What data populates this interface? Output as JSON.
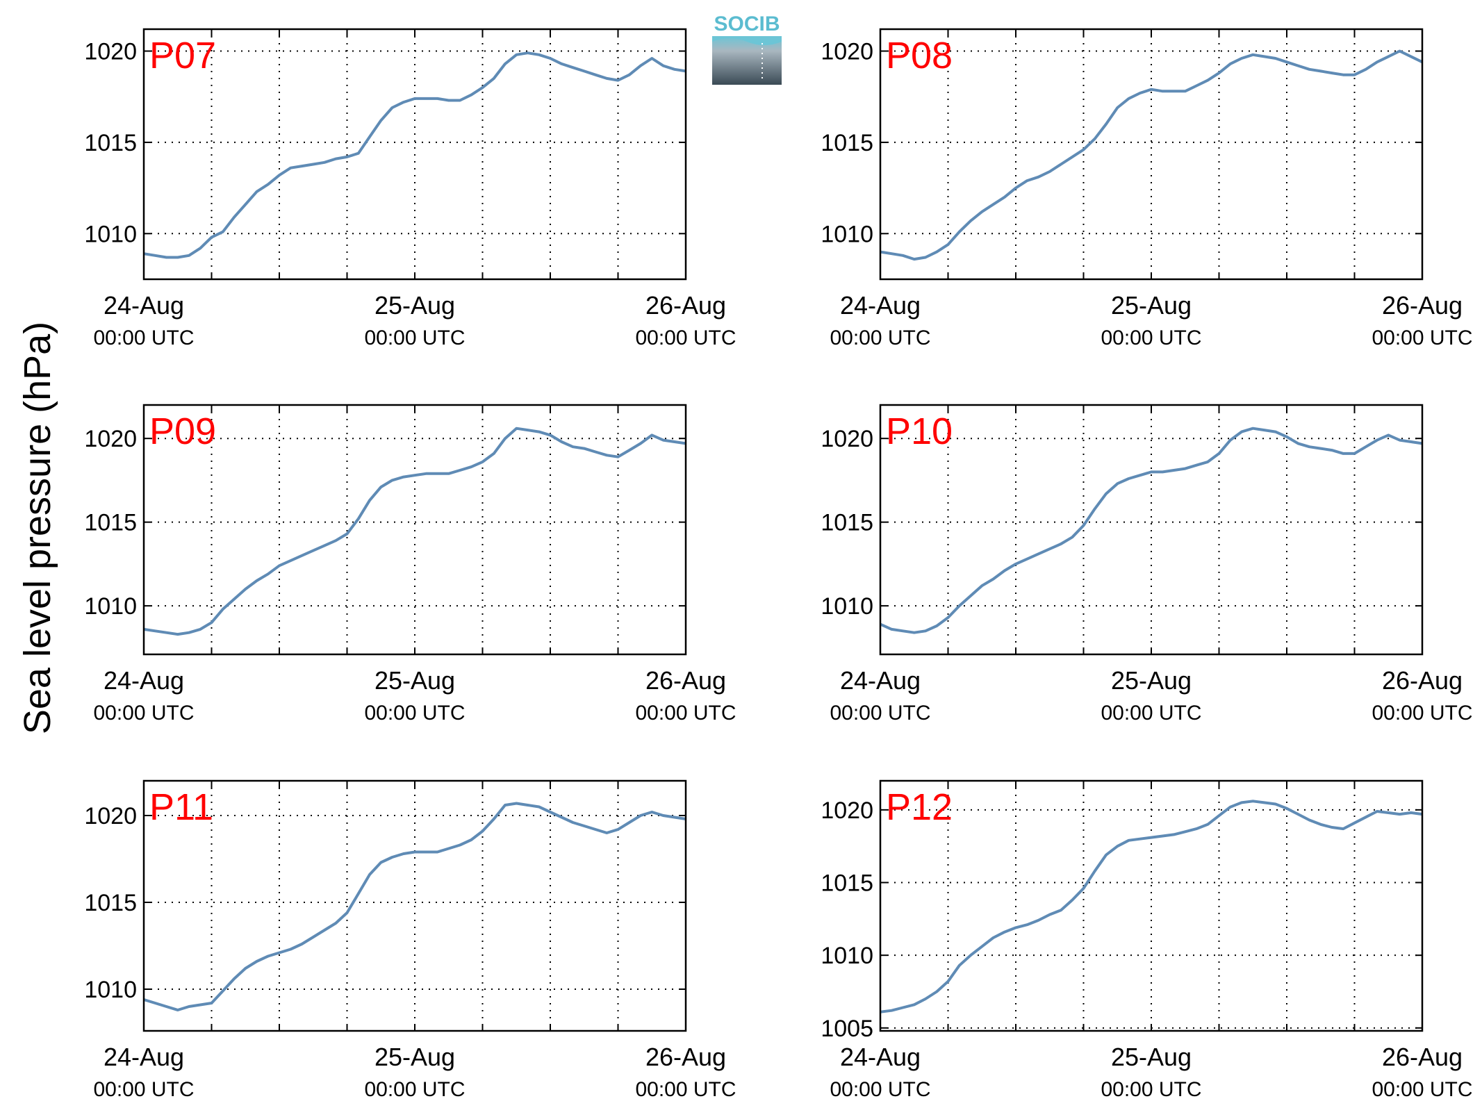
{
  "figure": {
    "ylabel": "Sea level pressure (hPa)",
    "logo_text": "SOCIB"
  },
  "colors": {
    "line": "#5f8bb5",
    "panel_label": "#ff0000",
    "axis": "#000000",
    "grid": "#000000",
    "logo_top": "#6cc5d6",
    "logo_bottom": "#3a4a55"
  },
  "chart_data": [
    {
      "type": "line",
      "name": "P07",
      "xlim": [
        0,
        48
      ],
      "ylim": [
        1007.5,
        1021.2
      ],
      "yticks": [
        1010,
        1015,
        1020
      ],
      "xticks": [
        0,
        6,
        12,
        18,
        24,
        30,
        36,
        42,
        48
      ],
      "xtick_labels": [
        {
          "x": 0,
          "date": "24-Aug",
          "time": "00:00 UTC"
        },
        {
          "x": 24,
          "date": "25-Aug",
          "time": "00:00 UTC"
        },
        {
          "x": 48,
          "date": "26-Aug",
          "time": "00:00 UTC"
        }
      ],
      "grid": true,
      "x": [
        0,
        1,
        2,
        3,
        4,
        5,
        6,
        7,
        8,
        9,
        10,
        11,
        12,
        13,
        14,
        15,
        16,
        17,
        18,
        19,
        20,
        21,
        22,
        23,
        24,
        25,
        26,
        27,
        28,
        29,
        30,
        31,
        32,
        33,
        34,
        35,
        36,
        37,
        38,
        39,
        40,
        41,
        42,
        43,
        44,
        45,
        46,
        47,
        48
      ],
      "y": [
        1008.9,
        1008.8,
        1008.7,
        1008.7,
        1008.8,
        1009.2,
        1009.8,
        1010.1,
        1010.9,
        1011.6,
        1012.3,
        1012.7,
        1013.2,
        1013.6,
        1013.7,
        1013.8,
        1013.9,
        1014.1,
        1014.2,
        1014.4,
        1015.3,
        1016.2,
        1016.9,
        1017.2,
        1017.4,
        1017.4,
        1017.4,
        1017.3,
        1017.3,
        1017.6,
        1018.0,
        1018.5,
        1019.3,
        1019.8,
        1019.9,
        1019.8,
        1019.6,
        1019.3,
        1019.1,
        1018.9,
        1018.7,
        1018.5,
        1018.4,
        1018.7,
        1019.2,
        1019.6,
        1019.2,
        1019.0,
        1018.9
      ]
    },
    {
      "type": "line",
      "name": "P08",
      "xlim": [
        0,
        48
      ],
      "ylim": [
        1007.5,
        1021.2
      ],
      "yticks": [
        1010,
        1015,
        1020
      ],
      "xticks": [
        0,
        6,
        12,
        18,
        24,
        30,
        36,
        42,
        48
      ],
      "xtick_labels": [
        {
          "x": 0,
          "date": "24-Aug",
          "time": "00:00 UTC"
        },
        {
          "x": 24,
          "date": "25-Aug",
          "time": "00:00 UTC"
        },
        {
          "x": 48,
          "date": "26-Aug",
          "time": "00:00 UTC"
        }
      ],
      "grid": true,
      "x": [
        0,
        1,
        2,
        3,
        4,
        5,
        6,
        7,
        8,
        9,
        10,
        11,
        12,
        13,
        14,
        15,
        16,
        17,
        18,
        19,
        20,
        21,
        22,
        23,
        24,
        25,
        26,
        27,
        28,
        29,
        30,
        31,
        32,
        33,
        34,
        35,
        36,
        37,
        38,
        39,
        40,
        41,
        42,
        43,
        44,
        45,
        46,
        47,
        48
      ],
      "y": [
        1009.0,
        1008.9,
        1008.8,
        1008.6,
        1008.7,
        1009.0,
        1009.4,
        1010.1,
        1010.7,
        1011.2,
        1011.6,
        1012.0,
        1012.5,
        1012.9,
        1013.1,
        1013.4,
        1013.8,
        1014.2,
        1014.6,
        1015.2,
        1016.0,
        1016.9,
        1017.4,
        1017.7,
        1017.9,
        1017.8,
        1017.8,
        1017.8,
        1018.1,
        1018.4,
        1018.8,
        1019.3,
        1019.6,
        1019.8,
        1019.7,
        1019.6,
        1019.4,
        1019.2,
        1019.0,
        1018.9,
        1018.8,
        1018.7,
        1018.7,
        1019.0,
        1019.4,
        1019.7,
        1020.0,
        1019.7,
        1019.4
      ]
    },
    {
      "type": "line",
      "name": "P09",
      "xlim": [
        0,
        48
      ],
      "ylim": [
        1007.1,
        1022.0
      ],
      "yticks": [
        1010,
        1015,
        1020
      ],
      "xticks": [
        0,
        6,
        12,
        18,
        24,
        30,
        36,
        42,
        48
      ],
      "xtick_labels": [
        {
          "x": 0,
          "date": "24-Aug",
          "time": "00:00 UTC"
        },
        {
          "x": 24,
          "date": "25-Aug",
          "time": "00:00 UTC"
        },
        {
          "x": 48,
          "date": "26-Aug",
          "time": "00:00 UTC"
        }
      ],
      "grid": true,
      "x": [
        0,
        1,
        2,
        3,
        4,
        5,
        6,
        7,
        8,
        9,
        10,
        11,
        12,
        13,
        14,
        15,
        16,
        17,
        18,
        19,
        20,
        21,
        22,
        23,
        24,
        25,
        26,
        27,
        28,
        29,
        30,
        31,
        32,
        33,
        34,
        35,
        36,
        37,
        38,
        39,
        40,
        41,
        42,
        43,
        44,
        45,
        46,
        47,
        48
      ],
      "y": [
        1008.6,
        1008.5,
        1008.4,
        1008.3,
        1008.4,
        1008.6,
        1009.0,
        1009.8,
        1010.4,
        1011.0,
        1011.5,
        1011.9,
        1012.4,
        1012.7,
        1013.0,
        1013.3,
        1013.6,
        1013.9,
        1014.3,
        1015.2,
        1016.3,
        1017.1,
        1017.5,
        1017.7,
        1017.8,
        1017.9,
        1017.9,
        1017.9,
        1018.1,
        1018.3,
        1018.6,
        1019.1,
        1020.0,
        1020.6,
        1020.5,
        1020.4,
        1020.2,
        1019.8,
        1019.5,
        1019.4,
        1019.2,
        1019.0,
        1018.9,
        1019.3,
        1019.7,
        1020.2,
        1019.9,
        1019.8,
        1019.7
      ]
    },
    {
      "type": "line",
      "name": "P10",
      "xlim": [
        0,
        48
      ],
      "ylim": [
        1007.1,
        1022.0
      ],
      "yticks": [
        1010,
        1015,
        1020
      ],
      "xticks": [
        0,
        6,
        12,
        18,
        24,
        30,
        36,
        42,
        48
      ],
      "xtick_labels": [
        {
          "x": 0,
          "date": "24-Aug",
          "time": "00:00 UTC"
        },
        {
          "x": 24,
          "date": "25-Aug",
          "time": "00:00 UTC"
        },
        {
          "x": 48,
          "date": "26-Aug",
          "time": "00:00 UTC"
        }
      ],
      "grid": true,
      "x": [
        0,
        1,
        2,
        3,
        4,
        5,
        6,
        7,
        8,
        9,
        10,
        11,
        12,
        13,
        14,
        15,
        16,
        17,
        18,
        19,
        20,
        21,
        22,
        23,
        24,
        25,
        26,
        27,
        28,
        29,
        30,
        31,
        32,
        33,
        34,
        35,
        36,
        37,
        38,
        39,
        40,
        41,
        42,
        43,
        44,
        45,
        46,
        47,
        48
      ],
      "y": [
        1008.9,
        1008.6,
        1008.5,
        1008.4,
        1008.5,
        1008.8,
        1009.3,
        1010.0,
        1010.6,
        1011.2,
        1011.6,
        1012.1,
        1012.5,
        1012.8,
        1013.1,
        1013.4,
        1013.7,
        1014.1,
        1014.8,
        1015.8,
        1016.7,
        1017.3,
        1017.6,
        1017.8,
        1018.0,
        1018.0,
        1018.1,
        1018.2,
        1018.4,
        1018.6,
        1019.1,
        1019.9,
        1020.4,
        1020.6,
        1020.5,
        1020.4,
        1020.1,
        1019.7,
        1019.5,
        1019.4,
        1019.3,
        1019.1,
        1019.1,
        1019.5,
        1019.9,
        1020.2,
        1019.9,
        1019.8,
        1019.7
      ]
    },
    {
      "type": "line",
      "name": "P11",
      "xlim": [
        0,
        48
      ],
      "ylim": [
        1007.6,
        1022.0
      ],
      "yticks": [
        1010,
        1015,
        1020
      ],
      "xticks": [
        0,
        6,
        12,
        18,
        24,
        30,
        36,
        42,
        48
      ],
      "xtick_labels": [
        {
          "x": 0,
          "date": "24-Aug",
          "time": "00:00 UTC"
        },
        {
          "x": 24,
          "date": "25-Aug",
          "time": "00:00 UTC"
        },
        {
          "x": 48,
          "date": "26-Aug",
          "time": "00:00 UTC"
        }
      ],
      "grid": true,
      "x": [
        0,
        1,
        2,
        3,
        4,
        5,
        6,
        7,
        8,
        9,
        10,
        11,
        12,
        13,
        14,
        15,
        16,
        17,
        18,
        19,
        20,
        21,
        22,
        23,
        24,
        25,
        26,
        27,
        28,
        29,
        30,
        31,
        32,
        33,
        34,
        35,
        36,
        37,
        38,
        39,
        40,
        41,
        42,
        43,
        44,
        45,
        46,
        47,
        48
      ],
      "y": [
        1009.4,
        1009.2,
        1009.0,
        1008.8,
        1009.0,
        1009.1,
        1009.2,
        1009.9,
        1010.6,
        1011.2,
        1011.6,
        1011.9,
        1012.1,
        1012.3,
        1012.6,
        1013.0,
        1013.4,
        1013.8,
        1014.4,
        1015.5,
        1016.6,
        1017.3,
        1017.6,
        1017.8,
        1017.9,
        1017.9,
        1017.9,
        1018.1,
        1018.3,
        1018.6,
        1019.1,
        1019.8,
        1020.6,
        1020.7,
        1020.6,
        1020.5,
        1020.2,
        1019.9,
        1019.6,
        1019.4,
        1019.2,
        1019.0,
        1019.2,
        1019.6,
        1020.0,
        1020.2,
        1020.0,
        1019.9,
        1019.8
      ]
    },
    {
      "type": "line",
      "name": "P12",
      "xlim": [
        0,
        48
      ],
      "ylim": [
        1004.8,
        1022.0
      ],
      "yticks": [
        1005,
        1010,
        1015,
        1020
      ],
      "xticks": [
        0,
        6,
        12,
        18,
        24,
        30,
        36,
        42,
        48
      ],
      "xtick_labels": [
        {
          "x": 0,
          "date": "24-Aug",
          "time": "00:00 UTC"
        },
        {
          "x": 24,
          "date": "25-Aug",
          "time": "00:00 UTC"
        },
        {
          "x": 48,
          "date": "26-Aug",
          "time": "00:00 UTC"
        }
      ],
      "grid": true,
      "x": [
        0,
        1,
        2,
        3,
        4,
        5,
        6,
        7,
        8,
        9,
        10,
        11,
        12,
        13,
        14,
        15,
        16,
        17,
        18,
        19,
        20,
        21,
        22,
        23,
        24,
        25,
        26,
        27,
        28,
        29,
        30,
        31,
        32,
        33,
        34,
        35,
        36,
        37,
        38,
        39,
        40,
        41,
        42,
        43,
        44,
        45,
        46,
        47,
        48
      ],
      "y": [
        1006.1,
        1006.2,
        1006.4,
        1006.6,
        1007.0,
        1007.5,
        1008.2,
        1009.3,
        1010.0,
        1010.6,
        1011.2,
        1011.6,
        1011.9,
        1012.1,
        1012.4,
        1012.8,
        1013.1,
        1013.8,
        1014.6,
        1015.8,
        1016.9,
        1017.5,
        1017.9,
        1018.0,
        1018.1,
        1018.2,
        1018.3,
        1018.5,
        1018.7,
        1019.0,
        1019.6,
        1020.2,
        1020.5,
        1020.6,
        1020.5,
        1020.4,
        1020.1,
        1019.7,
        1019.3,
        1019.0,
        1018.8,
        1018.7,
        1019.1,
        1019.5,
        1019.9,
        1019.8,
        1019.7,
        1019.8,
        1019.7
      ]
    }
  ]
}
